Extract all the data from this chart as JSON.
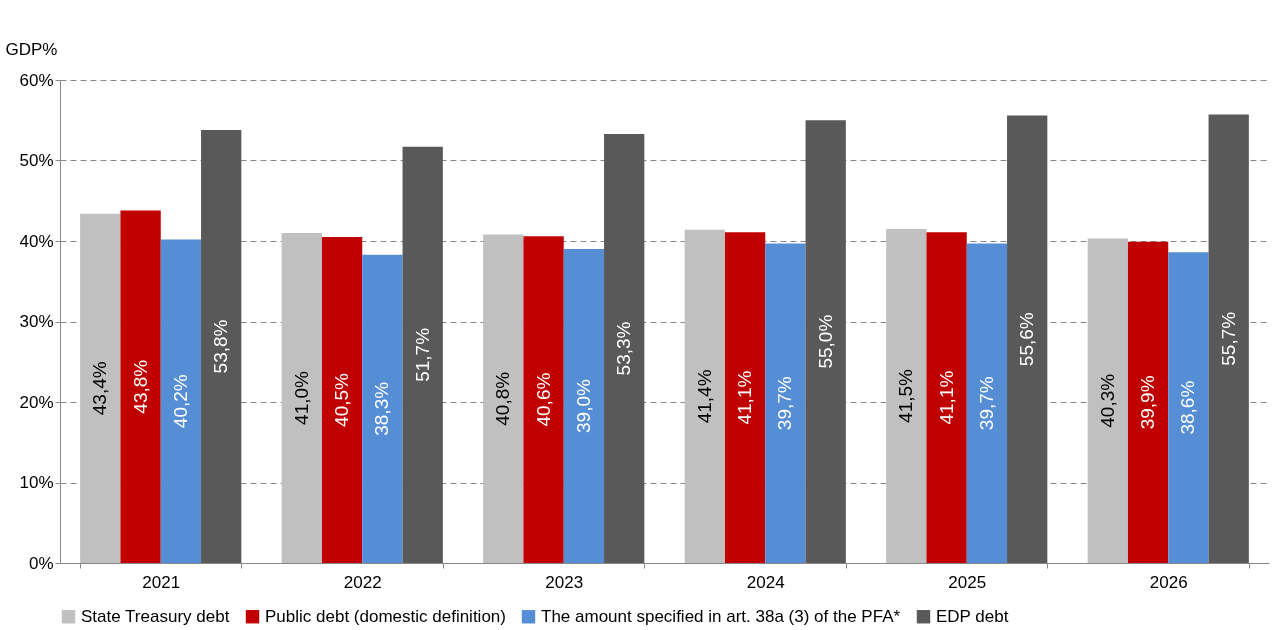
{
  "chart_data": {
    "type": "bar",
    "ylabel": "GDP%",
    "categories": [
      "2021",
      "2022",
      "2023",
      "2024",
      "2025",
      "2026"
    ],
    "series": [
      {
        "name": "State Treasury debt",
        "color": "#c0c0c0",
        "values": [
          43.4,
          41.0,
          40.8,
          41.4,
          41.5,
          40.3
        ],
        "value_labels": [
          "43,4%",
          "41,0%",
          "40,8%",
          "41,4%",
          "41,5%",
          "40,3%"
        ]
      },
      {
        "name": "Public debt (domestic definition)",
        "color": "#c00000",
        "values": [
          43.8,
          40.5,
          40.6,
          41.1,
          41.1,
          39.9
        ],
        "value_labels": [
          "43,8%",
          "40,5%",
          "40,6%",
          "41,1%",
          "41,1%",
          "39,9%"
        ]
      },
      {
        "name": "The amount specified in art. 38a (3) of the PFA*",
        "color": "#558ed5",
        "values": [
          40.2,
          38.3,
          39.0,
          39.7,
          39.7,
          38.6
        ],
        "value_labels": [
          "40,2%",
          "38,3%",
          "39,0%",
          "39,7%",
          "39,7%",
          "38,6%"
        ]
      },
      {
        "name": "EDP debt",
        "color": "#595959",
        "values": [
          53.8,
          51.7,
          53.3,
          55.0,
          55.6,
          55.7
        ],
        "value_labels": [
          "53,8%",
          "51,7%",
          "53,3%",
          "55,0%",
          "55,6%",
          "55,7%"
        ]
      }
    ],
    "ylim": [
      0,
      60
    ],
    "yticks": [
      {
        "value": 0,
        "label": "0%"
      },
      {
        "value": 10,
        "label": "10%"
      },
      {
        "value": 20,
        "label": "20%"
      },
      {
        "value": 30,
        "label": "30%"
      },
      {
        "value": 40,
        "label": "40%"
      },
      {
        "value": 50,
        "label": "50%"
      },
      {
        "value": 60,
        "label": "60%"
      }
    ],
    "grid": "y",
    "legend": "bottom"
  }
}
